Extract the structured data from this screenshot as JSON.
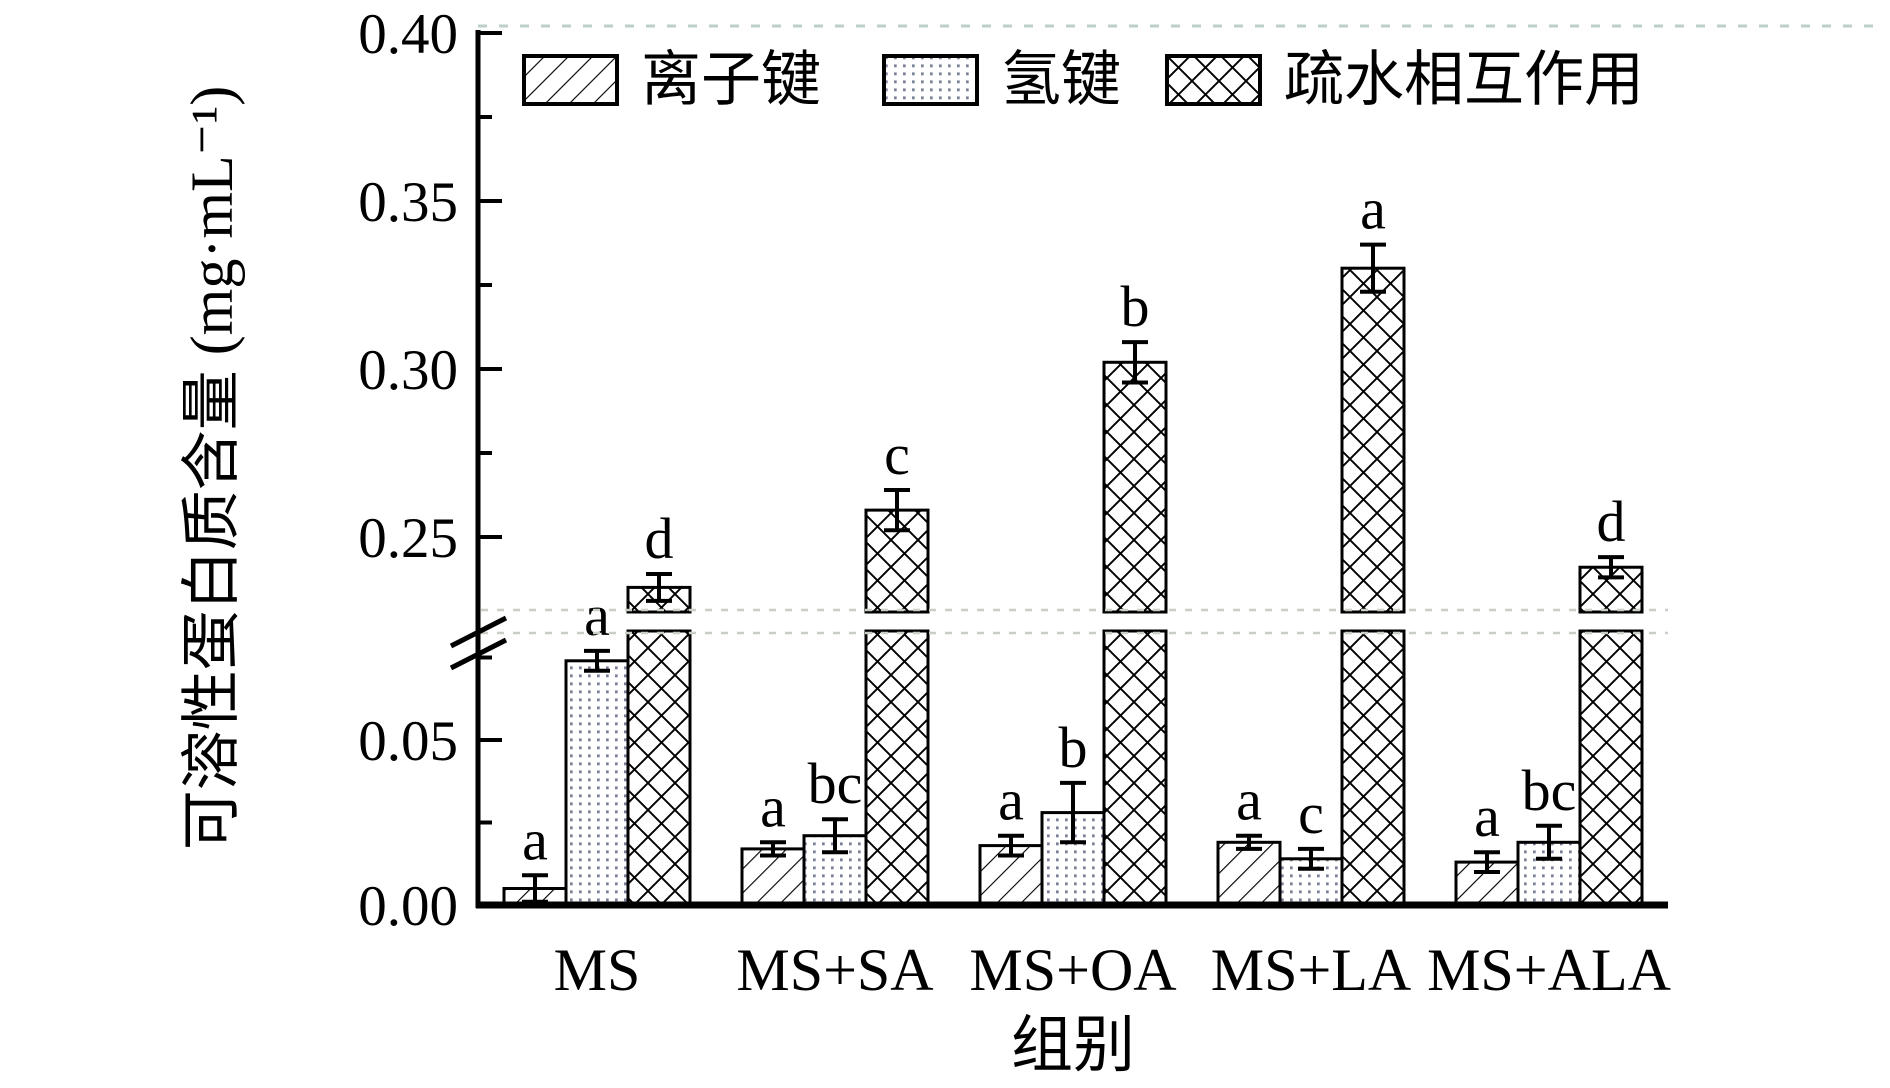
{
  "figure": {
    "background": "#ffffff",
    "ink_color": "#000000",
    "dot_pattern_color": "#7b8198",
    "break_dash_color": "#c9cfc6",
    "top_border_dash_color": "#bccfca"
  },
  "legend": {
    "items": [
      {
        "label": "离子键",
        "pattern": "diagonal"
      },
      {
        "label": "氢键",
        "pattern": "dots"
      },
      {
        "label": "疏水相互作用",
        "pattern": "crosshatch"
      }
    ]
  },
  "chart_data": {
    "type": "bar",
    "title": "",
    "categories": [
      "MS",
      "MS+SA",
      "MS+OA",
      "MS+LA",
      "MS+ALA"
    ],
    "series": [
      {
        "name": "离子键",
        "pattern": "diagonal",
        "values": [
          0.005,
          0.017,
          0.018,
          0.019,
          0.013
        ],
        "errors": [
          0.004,
          0.002,
          0.003,
          0.002,
          0.003
        ],
        "sig_letters": [
          "a",
          "a",
          "a",
          "a",
          "a"
        ]
      },
      {
        "name": "氢键",
        "pattern": "dots",
        "values": [
          0.074,
          0.021,
          0.028,
          0.014,
          0.019
        ],
        "errors": [
          0.003,
          0.005,
          0.009,
          0.003,
          0.005
        ],
        "sig_letters": [
          "a",
          "bc",
          "b",
          "c",
          "bc"
        ]
      },
      {
        "name": "疏水相互作用",
        "pattern": "crosshatch",
        "values": [
          0.235,
          0.258,
          0.302,
          0.33,
          0.241
        ],
        "errors": [
          0.004,
          0.006,
          0.006,
          0.007,
          0.003
        ],
        "sig_letters": [
          "d",
          "c",
          "b",
          "a",
          "d"
        ]
      }
    ],
    "xlabel": "组别",
    "ylabel": "可溶性蛋白质含量 (mg·mL⁻¹)",
    "axis_break": {
      "lower_max": 0.075,
      "upper_min": 0.225
    },
    "lower_ticks": [
      "0.00",
      "0.05"
    ],
    "upper_ticks": [
      "0.25",
      "0.30",
      "0.35",
      "0.40"
    ],
    "lower_minor_ticks": [
      0.025,
      0.075
    ],
    "upper_minor_ticks": [
      0.275,
      0.325,
      0.375
    ],
    "legend_position": "top",
    "grid": false
  }
}
